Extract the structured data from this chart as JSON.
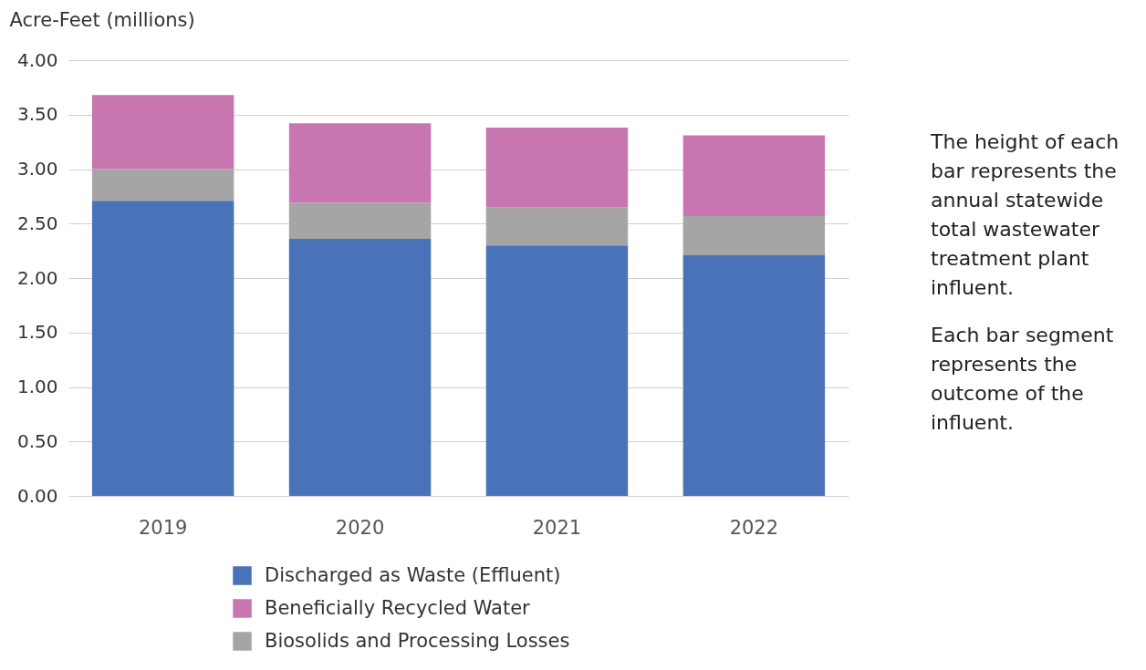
{
  "chart_data": {
    "type": "bar",
    "stacked": true,
    "ylabel": "Acre-Feet (millions)",
    "categories": [
      "2019",
      "2020",
      "2021",
      "2022"
    ],
    "series": [
      {
        "name": "Discharged as Waste (Effluent)",
        "color": "#4a72b8",
        "values": [
          2.71,
          2.36,
          2.3,
          2.21
        ]
      },
      {
        "name": "Biosolids and Processing Losses",
        "color": "#a5a5a5",
        "values": [
          0.29,
          0.33,
          0.35,
          0.36
        ]
      },
      {
        "name": "Beneficially Recycled Water",
        "color": "#c776b0",
        "values": [
          0.68,
          0.73,
          0.73,
          0.74
        ]
      }
    ],
    "ylim": [
      0,
      4
    ],
    "yticks": [
      {
        "value": 0,
        "label": "0.00"
      },
      {
        "value": 0.5,
        "label": "0.50"
      },
      {
        "value": 1,
        "label": "1.00"
      },
      {
        "value": 1.5,
        "label": "1.50"
      },
      {
        "value": 2,
        "label": "2.00"
      },
      {
        "value": 2.5,
        "label": "2.50"
      },
      {
        "value": 3,
        "label": "3.00"
      },
      {
        "value": 3.5,
        "label": "3.50"
      },
      {
        "value": 4,
        "label": "4.00"
      }
    ],
    "grid": "y",
    "legend": "bottom",
    "annotations": [
      "The height of each bar represents the annual statewide total wastewater treatment plant influent.",
      "Each bar segment represents the outcome of the influent."
    ]
  }
}
